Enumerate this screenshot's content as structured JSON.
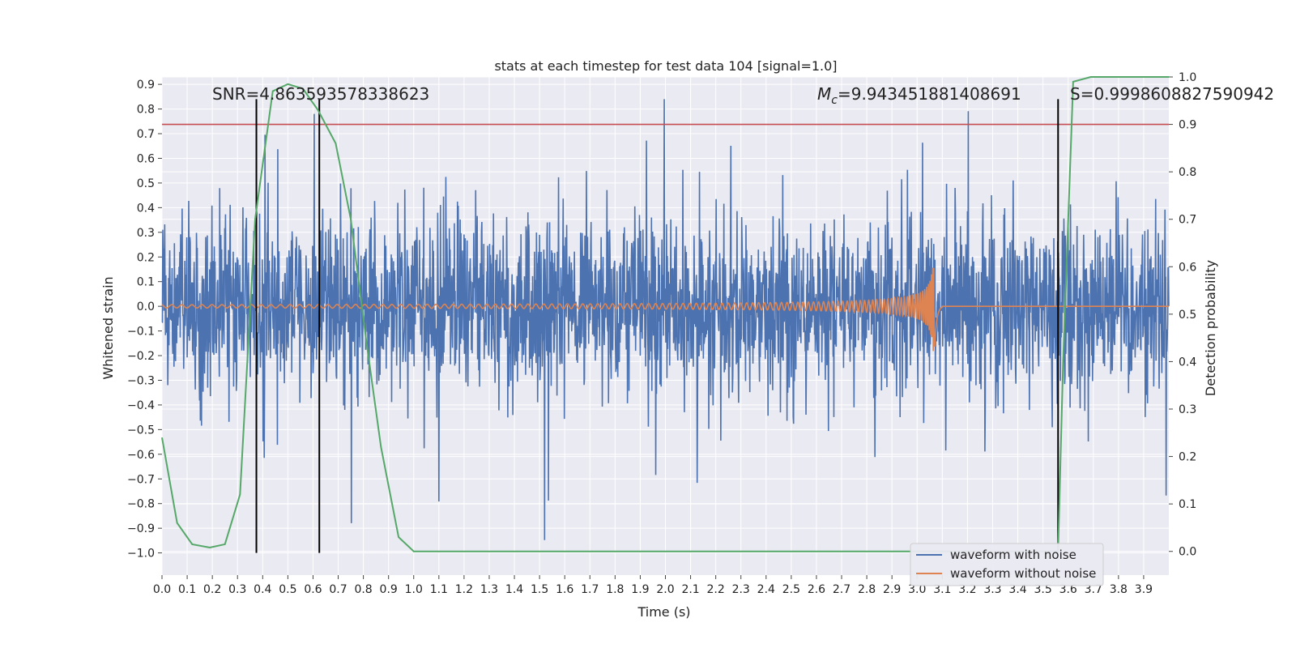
{
  "chart_data": {
    "type": "line",
    "title": "stats at each timestep for test data 104 [signal=1.0]",
    "xlabel": "Time (s)",
    "ylabel": "Whitened strain",
    "y2label": "Detection probability",
    "xlim": [
      0.0,
      4.0
    ],
    "ylim": [
      -1.09,
      0.93
    ],
    "y2lim": [
      -0.05,
      1.0
    ],
    "x_ticks": [
      "0.0",
      "0.1",
      "0.2",
      "0.3",
      "0.4",
      "0.5",
      "0.6",
      "0.7",
      "0.8",
      "0.9",
      "1.0",
      "1.1",
      "1.2",
      "1.3",
      "1.4",
      "1.5",
      "1.6",
      "1.7",
      "1.8",
      "1.9",
      "2.0",
      "2.1",
      "2.2",
      "2.3",
      "2.4",
      "2.5",
      "2.6",
      "2.7",
      "2.8",
      "2.9",
      "3.0",
      "3.1",
      "3.2",
      "3.3",
      "3.4",
      "3.5",
      "3.6",
      "3.7",
      "3.8",
      "3.9"
    ],
    "y_ticks": [
      "0.9",
      "0.8",
      "0.7",
      "0.6",
      "0.5",
      "0.4",
      "0.3",
      "0.2",
      "0.1",
      "0.0",
      "−0.1",
      "−0.2",
      "−0.3",
      "−0.4",
      "−0.5",
      "−0.6",
      "−0.7",
      "−0.8",
      "−0.9",
      "−1.0"
    ],
    "y2_ticks": [
      "1.0",
      "0.9",
      "0.8",
      "0.7",
      "0.6",
      "0.5",
      "0.4",
      "0.3",
      "0.2",
      "0.1",
      "0.0"
    ],
    "grid": true,
    "legend_position": "lower-right",
    "annotations": {
      "snr": "SNR=4.863593578338623",
      "mc_symbol": "M",
      "mc_sub": "c",
      "mc_value": "=9.943451881408691",
      "s": "S=0.9998608827590942"
    },
    "series": [
      {
        "name": "waveform with noise",
        "color": "#4c72b0",
        "kind": "noise",
        "envelope_typical": 0.3,
        "peak_approx": 0.84,
        "trough_approx": -1.0
      },
      {
        "name": "waveform without noise",
        "color": "#dd8452",
        "kind": "chirp",
        "merger_time": 3.07,
        "amplitude_at_merger": 0.19
      },
      {
        "name": "",
        "color": "#55a868",
        "axis": "right",
        "x": [
          0.0,
          0.06,
          0.12,
          0.19,
          0.25,
          0.31,
          0.37,
          0.44,
          0.5,
          0.56,
          0.62,
          0.69,
          0.75,
          0.81,
          0.87,
          0.94,
          1.0,
          1.06,
          3.5,
          3.56,
          3.58,
          3.62,
          3.69,
          3.75,
          4.0
        ],
        "values": [
          0.24,
          0.06,
          0.015,
          0.008,
          0.015,
          0.12,
          0.7,
          0.97,
          0.985,
          0.975,
          0.93,
          0.86,
          0.7,
          0.45,
          0.22,
          0.03,
          0.0,
          0.0,
          0.0,
          0.0,
          0.4,
          0.99,
          1.0,
          1.0,
          1.0
        ]
      }
    ],
    "hlines": [
      {
        "y": 0.9,
        "axis": "right",
        "color": "#c44e52"
      }
    ],
    "vlines": [
      {
        "x": 0.375,
        "y_from": -1.0,
        "y_to": 0.84
      },
      {
        "x": 0.625,
        "y_from": -1.0,
        "y_to": 0.84
      },
      {
        "x": 3.56,
        "y_from": -1.0,
        "y_to": 0.84
      }
    ]
  }
}
